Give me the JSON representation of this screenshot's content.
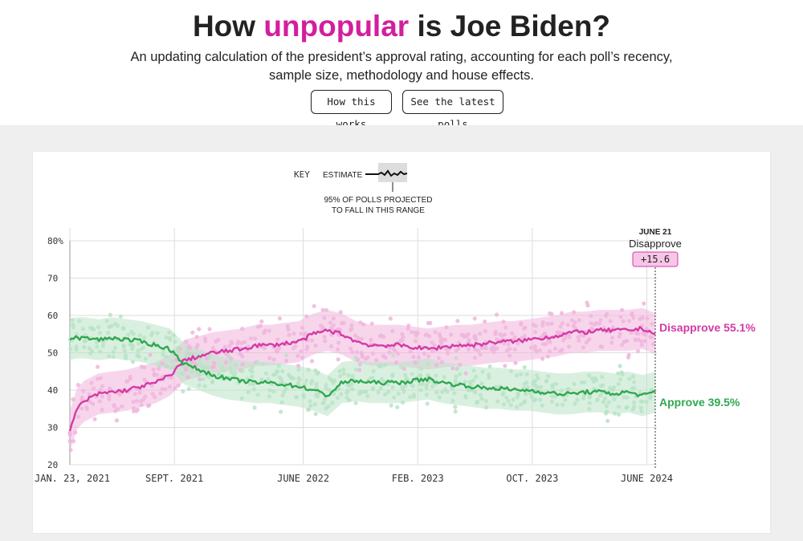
{
  "header": {
    "title_pre": "How ",
    "title_highlight": "unpopular",
    "title_post": " is Joe Biden?",
    "subtitle_line1": "An updating calculation of the president’s approval rating, accounting for each poll’s recency,",
    "subtitle_line2": "sample size, methodology and house effects.",
    "btn_how": "How this works",
    "btn_polls": "See the latest polls"
  },
  "key": {
    "label": "KEY",
    "estimate": "ESTIMATE",
    "range_line1": "95% OF POLLS PROJECTED",
    "range_line2": "TO FALL IN THIS RANGE"
  },
  "callout": {
    "date": "JUNE 21",
    "label": "Disapprove",
    "value": "+15.6"
  },
  "colors": {
    "disapprove": "#d43aa6",
    "approve": "#2fa84f",
    "disapprove_light": "#f0b5dd",
    "approve_light": "#b9e3c6",
    "highlight": "#d21f9e"
  },
  "chart_data": {
    "type": "line",
    "ylim": [
      20,
      80
    ],
    "yticks": [
      "80%",
      "70",
      "60",
      "50",
      "40",
      "30",
      "20"
    ],
    "ytick_values": [
      80,
      70,
      60,
      50,
      40,
      30,
      20
    ],
    "xlabels": [
      "JAN. 23, 2021",
      "SEPT. 2021",
      "JUNE 2022",
      "FEB. 2023",
      "OCT. 2023",
      "JUNE 2024"
    ],
    "xlabel_months": [
      0,
      7.3,
      16.3,
      24.3,
      32.3,
      40.3
    ],
    "xlim_months": [
      0,
      41
    ],
    "series": [
      {
        "name": "Disapprove",
        "end_label": "Disapprove 55.1%",
        "x_months": [
          0,
          0.5,
          1,
          2,
          3,
          4,
          5,
          6,
          7,
          8,
          9,
          10,
          11,
          12,
          13,
          14,
          15,
          16,
          17,
          18,
          19,
          20,
          21,
          22,
          23,
          24,
          25,
          26,
          27,
          28,
          29,
          30,
          31,
          32,
          33,
          34,
          35,
          36,
          37,
          38,
          39,
          40,
          40.9
        ],
        "values": [
          29,
          35,
          37,
          39,
          39.5,
          40,
          41,
          42,
          44,
          48,
          49,
          50,
          50.5,
          51,
          52,
          52,
          52.5,
          53,
          55,
          56,
          55,
          53,
          52,
          52,
          52,
          51.5,
          51,
          51.5,
          52,
          52,
          52.5,
          53,
          53,
          53.5,
          54,
          54.5,
          55.5,
          55.5,
          56,
          56,
          56,
          56.5,
          55.1
        ]
      },
      {
        "name": "Approve",
        "end_label": "Approve 39.5%",
        "x_months": [
          0,
          0.5,
          1,
          2,
          3,
          4,
          5,
          6,
          7,
          8,
          9,
          10,
          11,
          12,
          13,
          14,
          15,
          16,
          17,
          18,
          19,
          20,
          21,
          22,
          23,
          24,
          25,
          26,
          27,
          28,
          29,
          30,
          31,
          32,
          33,
          34,
          35,
          36,
          37,
          38,
          39,
          40,
          40.9
        ],
        "values": [
          53.5,
          54,
          54,
          53.5,
          54,
          53.5,
          53,
          52,
          51,
          47,
          45.5,
          44,
          43,
          42.5,
          42,
          42,
          41.5,
          41,
          40,
          38.5,
          42,
          42.5,
          42,
          42,
          42,
          42.5,
          43,
          42,
          41.5,
          41,
          40.5,
          40.5,
          40,
          40,
          39.5,
          39,
          39,
          39.5,
          39.5,
          39,
          39.5,
          38.5,
          39.5
        ]
      }
    ]
  }
}
